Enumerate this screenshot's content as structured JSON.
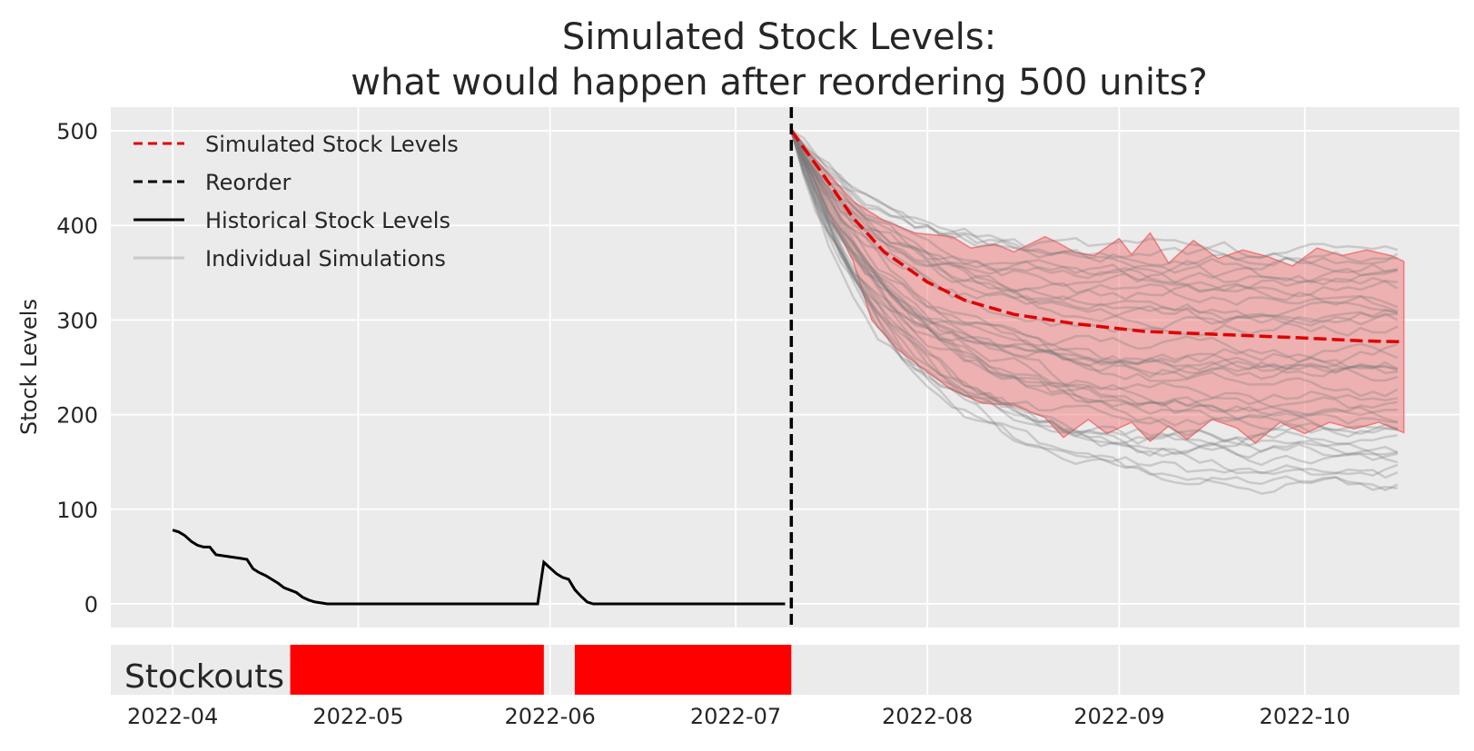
{
  "chart_data": {
    "type": "line",
    "title": [
      "Simulated Stock Levels:",
      "what would happen after reordering 500 units?"
    ],
    "ylabel": "Stock Levels",
    "xlabel": "",
    "ylim": [
      -25,
      525
    ],
    "xlim": [
      "2022-03-22",
      "2022-10-26"
    ],
    "yticks": [
      0,
      100,
      200,
      300,
      400,
      500
    ],
    "xticks": [
      "2022-04-01",
      "2022-05-01",
      "2022-06-01",
      "2022-07-01",
      "2022-08-01",
      "2022-09-01",
      "2022-10-01"
    ],
    "xtick_labels": [
      "2022-04",
      "2022-05",
      "2022-06",
      "2022-07",
      "2022-08",
      "2022-09",
      "2022-10"
    ],
    "grid": true,
    "legend_position": "top-left",
    "legend": [
      {
        "label": "Simulated Stock Levels",
        "style": "red-dashed"
      },
      {
        "label": "Reorder",
        "style": "black-dashed"
      },
      {
        "label": "Historical Stock Levels",
        "style": "black-solid"
      },
      {
        "label": "Individual Simulations",
        "style": "grey-light"
      }
    ],
    "colors": {
      "simulated_mean": "#e00000",
      "reorder": "#000000",
      "historical": "#000000",
      "simulations": "#7a7a7a",
      "band": "#f07878",
      "stockout": "#ff0000",
      "background": "#ebebeb"
    },
    "reorder": {
      "date": "2022-07-10",
      "units": 500
    },
    "historical": [
      [
        "2022-04-01",
        78
      ],
      [
        "2022-04-02",
        76
      ],
      [
        "2022-04-03",
        72
      ],
      [
        "2022-04-04",
        66
      ],
      [
        "2022-04-05",
        62
      ],
      [
        "2022-04-06",
        60
      ],
      [
        "2022-04-07",
        60
      ],
      [
        "2022-04-08",
        52
      ],
      [
        "2022-04-10",
        50
      ],
      [
        "2022-04-12",
        48
      ],
      [
        "2022-04-13",
        47
      ],
      [
        "2022-04-14",
        37
      ],
      [
        "2022-04-15",
        33
      ],
      [
        "2022-04-16",
        30
      ],
      [
        "2022-04-18",
        22
      ],
      [
        "2022-04-19",
        17
      ],
      [
        "2022-04-21",
        12
      ],
      [
        "2022-04-22",
        7
      ],
      [
        "2022-04-23",
        4
      ],
      [
        "2022-04-24",
        2
      ],
      [
        "2022-04-25",
        1
      ],
      [
        "2022-04-26",
        0
      ],
      [
        "2022-05-30",
        0
      ],
      [
        "2022-05-31",
        44
      ],
      [
        "2022-06-01",
        38
      ],
      [
        "2022-06-02",
        32
      ],
      [
        "2022-06-03",
        28
      ],
      [
        "2022-06-04",
        26
      ],
      [
        "2022-06-05",
        15
      ],
      [
        "2022-06-06",
        8
      ],
      [
        "2022-06-07",
        2
      ],
      [
        "2022-06-08",
        0
      ],
      [
        "2022-07-09",
        0
      ]
    ],
    "simulated_mean": [
      [
        "2022-07-10",
        500
      ],
      [
        "2022-07-15",
        455
      ],
      [
        "2022-07-20",
        408
      ],
      [
        "2022-07-25",
        372
      ],
      [
        "2022-08-01",
        340
      ],
      [
        "2022-08-07",
        321
      ],
      [
        "2022-08-15",
        306
      ],
      [
        "2022-08-25",
        296
      ],
      [
        "2022-09-05",
        288
      ],
      [
        "2022-09-20",
        284
      ],
      [
        "2022-10-01",
        281
      ],
      [
        "2022-10-10",
        278
      ],
      [
        "2022-10-17",
        277
      ]
    ],
    "band_upper": [
      [
        "2022-07-10",
        503
      ],
      [
        "2022-07-13",
        476
      ],
      [
        "2022-07-16",
        455
      ],
      [
        "2022-07-20",
        425
      ],
      [
        "2022-07-25",
        405
      ],
      [
        "2022-07-30",
        392
      ],
      [
        "2022-08-05",
        388
      ],
      [
        "2022-08-08",
        376
      ],
      [
        "2022-08-12",
        380
      ],
      [
        "2022-08-15",
        372
      ],
      [
        "2022-08-20",
        388
      ],
      [
        "2022-08-22",
        382
      ],
      [
        "2022-08-25",
        371
      ],
      [
        "2022-08-28",
        368
      ],
      [
        "2022-09-01",
        386
      ],
      [
        "2022-09-03",
        369
      ],
      [
        "2022-09-06",
        392
      ],
      [
        "2022-09-09",
        360
      ],
      [
        "2022-09-13",
        384
      ],
      [
        "2022-09-17",
        365
      ],
      [
        "2022-09-21",
        374
      ],
      [
        "2022-09-25",
        367
      ],
      [
        "2022-09-29",
        357
      ],
      [
        "2022-10-03",
        376
      ],
      [
        "2022-10-07",
        368
      ],
      [
        "2022-10-11",
        374
      ],
      [
        "2022-10-15",
        368
      ],
      [
        "2022-10-17",
        362
      ]
    ],
    "band_lower": [
      [
        "2022-07-10",
        497
      ],
      [
        "2022-07-13",
        458
      ],
      [
        "2022-07-16",
        414
      ],
      [
        "2022-07-20",
        362
      ],
      [
        "2022-07-23",
        300
      ],
      [
        "2022-07-27",
        270
      ],
      [
        "2022-08-01",
        245
      ],
      [
        "2022-08-05",
        226
      ],
      [
        "2022-08-10",
        212
      ],
      [
        "2022-08-15",
        210
      ],
      [
        "2022-08-20",
        197
      ],
      [
        "2022-08-23",
        176
      ],
      [
        "2022-08-27",
        195
      ],
      [
        "2022-08-30",
        180
      ],
      [
        "2022-09-03",
        192
      ],
      [
        "2022-09-06",
        172
      ],
      [
        "2022-09-09",
        188
      ],
      [
        "2022-09-12",
        174
      ],
      [
        "2022-09-16",
        195
      ],
      [
        "2022-09-20",
        186
      ],
      [
        "2022-09-23",
        170
      ],
      [
        "2022-09-27",
        192
      ],
      [
        "2022-10-01",
        180
      ],
      [
        "2022-10-05",
        192
      ],
      [
        "2022-10-09",
        185
      ],
      [
        "2022-10-13",
        192
      ],
      [
        "2022-10-17",
        181
      ]
    ],
    "simulations_summary": {
      "count": 40,
      "start": "2022-07-10",
      "end": "2022-10-17",
      "start_value": 500,
      "end_min": 115,
      "end_max": 375
    },
    "stockouts": {
      "label": "Stockouts",
      "periods": [
        [
          "2022-04-20",
          "2022-05-31"
        ],
        [
          "2022-06-05",
          "2022-07-10"
        ]
      ]
    }
  }
}
